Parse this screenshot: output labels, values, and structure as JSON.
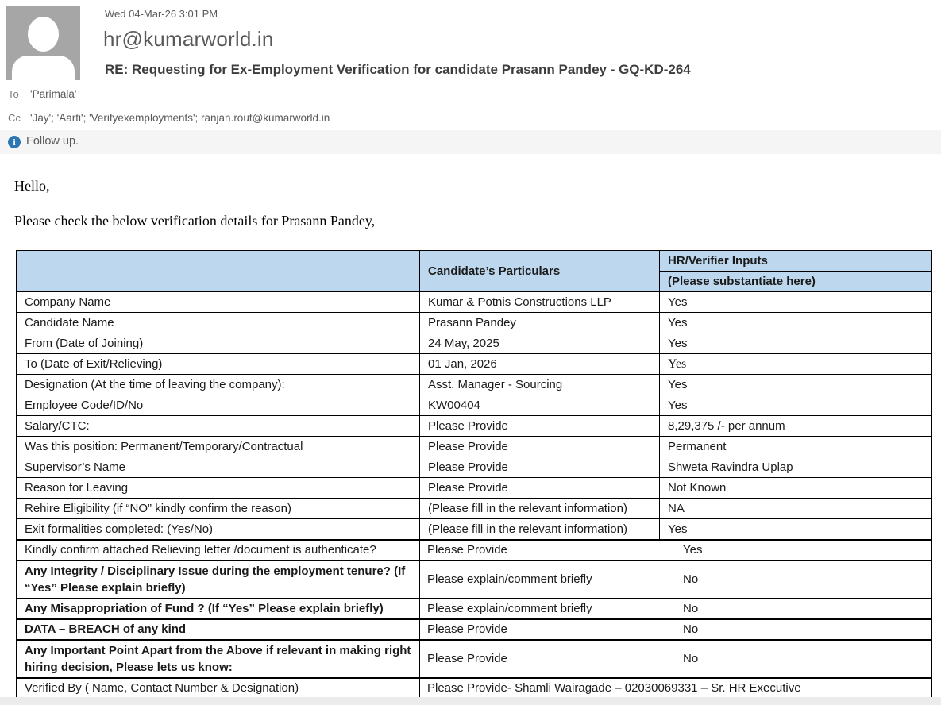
{
  "email": {
    "timestamp": "Wed 04-Mar-26 3:01 PM",
    "sender": "hr@kumarworld.in",
    "subject": "RE: Requesting for Ex-Employment Verification for candidate Prasann Pandey - GQ-KD-264",
    "to_label": "To",
    "to_value": "'Parimala'",
    "cc_label": "Cc",
    "cc_value": "'Jay'; 'Aarti'; 'Verifyexemployments'; ranjan.rout@kumarworld.in",
    "followup_text": "Follow up.",
    "info_icon_glyph": "i"
  },
  "body": {
    "greeting": "Hello,",
    "intro": "Please check the below verification details for Prasann Pandey,"
  },
  "table": {
    "header": {
      "col2": "Candidate’s Particulars",
      "col3_line1": "HR/Verifier Inputs",
      "col3_line2": "(Please substantiate here)"
    },
    "rows": [
      {
        "label": "Company Name",
        "particulars": "Kumar & Potnis Constructions LLP",
        "input": "Yes"
      },
      {
        "label": "Candidate Name",
        "particulars": "Prasann Pandey",
        "input": "Yes"
      },
      {
        "label": "From (Date of Joining)",
        "particulars": "24 May, 2025",
        "input": "Yes"
      },
      {
        "label": "To (Date of Exit/Relieving)",
        "particulars": "01 Jan, 2026",
        "input": "Yes"
      },
      {
        "label": "Designation (At the time of leaving the company):",
        "particulars": "Asst. Manager - Sourcing",
        "input": "Yes"
      },
      {
        "label": "Employee Code/ID/No",
        "particulars": "KW00404",
        "input": "Yes"
      },
      {
        "label": "Salary/CTC:",
        "particulars": "Please Provide",
        "input": "8,29,375 /- per annum"
      },
      {
        "label": "Was this position: Permanent/Temporary/Contractual",
        "particulars": "Please Provide",
        "input": "Permanent"
      },
      {
        "label": "Supervisor’s Name",
        "particulars": "Please Provide",
        "input": "Shweta Ravindra Uplap"
      },
      {
        "label": "Reason for Leaving",
        "particulars": "Please Provide",
        "input": "Not Known"
      },
      {
        "label": "Rehire Eligibility (if “NO” kindly confirm the reason)",
        "particulars": "(Please fill in the relevant information)",
        "input": "NA"
      },
      {
        "label": "Exit formalities completed: (Yes/No)",
        "particulars": "(Please fill in the relevant information)",
        "input": "Yes"
      },
      {
        "label": "Kindly confirm attached Relieving letter /document is authenticate?",
        "particulars": "Please Provide",
        "input": "Yes"
      },
      {
        "label": "Any Integrity / Disciplinary Issue during the employment tenure? (If “Yes” Please explain briefly)",
        "particulars": "Please explain/comment briefly",
        "input": "No"
      },
      {
        "label": "Any Misappropriation of Fund ? (If “Yes” Please explain briefly)",
        "particulars": "Please explain/comment briefly",
        "input": "No"
      },
      {
        "label": "DATA – BREACH of any kind",
        "particulars": "Please Provide",
        "input": "No"
      },
      {
        "label": "Any Important Point Apart from the Above if relevant in making right hiring decision, Please lets us know:",
        "particulars": "Please Provide",
        "input": "No"
      },
      {
        "label": "Verified By ( Name, Contact Number & Designation)",
        "particulars": "Please Provide",
        "input": "- Shamli Wairagade – 02030069331 – Sr. HR Executive"
      }
    ]
  },
  "colors": {
    "table_header_bg": "#bdd7ee",
    "accent_blue": "#2e75b6",
    "avatar_gray": "#a6a6a6"
  }
}
